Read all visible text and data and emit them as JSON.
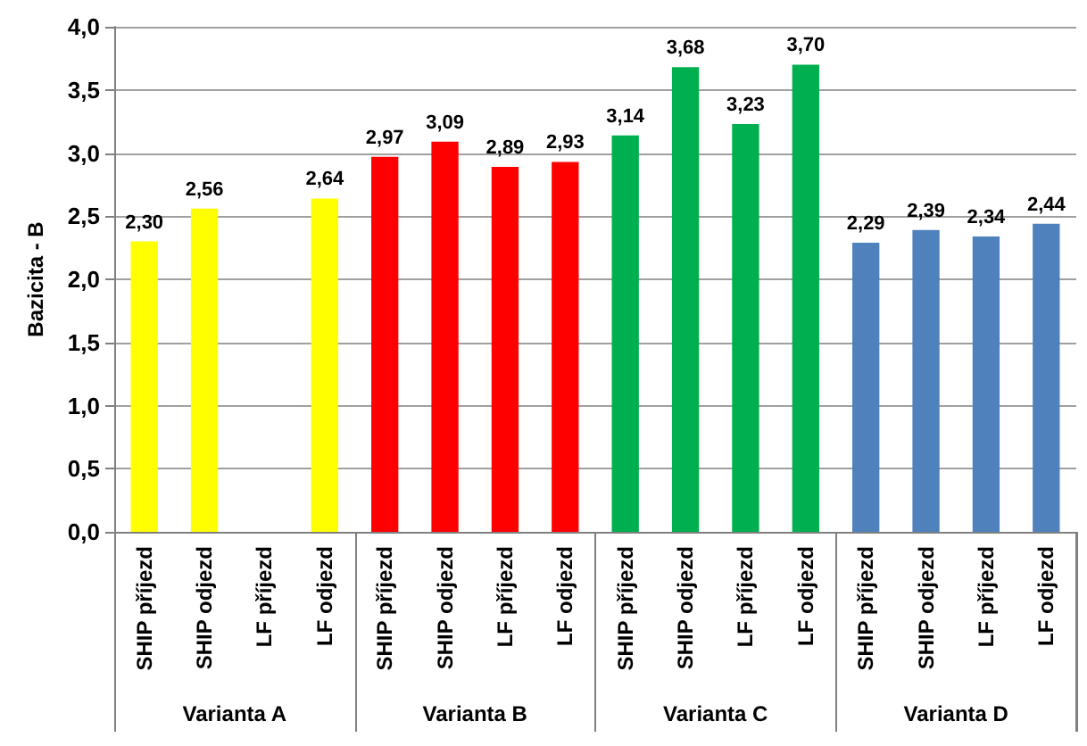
{
  "chart_data": {
    "type": "bar",
    "ylabel": "Bazicita - B",
    "categories": [
      "SHIP příjezd",
      "SHIP odjezd",
      "LF příjezd",
      "LF odjezd",
      "SHIP příjezd",
      "SHIP odjezd",
      "LF příjezd",
      "LF odjezd",
      "SHIP příjezd",
      "SHIP odjezd",
      "LF příjezd",
      "LF odjezd",
      "SHIP příjezd",
      "SHIP odjezd",
      "LF příjezd",
      "LF odjezd"
    ],
    "values": [
      2.3,
      2.56,
      null,
      2.64,
      2.97,
      3.09,
      2.89,
      2.93,
      3.14,
      3.68,
      3.23,
      3.7,
      2.29,
      2.39,
      2.34,
      2.44
    ],
    "value_labels": [
      "2,30",
      "2,56",
      null,
      "2,64",
      "2,97",
      "3,09",
      "2,89",
      "2,93",
      "3,14",
      "3,68",
      "3,23",
      "3,70",
      "2,29",
      "2,39",
      "2,34",
      "2,44"
    ],
    "colors": [
      "#ffff00",
      "#ffff00",
      "#ffff00",
      "#ffff00",
      "#ff0000",
      "#ff0000",
      "#ff0000",
      "#ff0000",
      "#00b050",
      "#00b050",
      "#00b050",
      "#00b050",
      "#4f81bd",
      "#4f81bd",
      "#4f81bd",
      "#4f81bd"
    ],
    "annotations": [
      "Varianta A",
      "Varianta B",
      "Varianta C",
      "Varianta D"
    ],
    "ylim": [
      0,
      4
    ],
    "yticks": [
      {
        "value": 0,
        "label": "0,0"
      },
      {
        "value": 0.5,
        "label": "0,5"
      },
      {
        "value": 1,
        "label": "1,0"
      },
      {
        "value": 1.5,
        "label": "1,5"
      },
      {
        "value": 2,
        "label": "2,0"
      },
      {
        "value": 2.5,
        "label": "2,5"
      },
      {
        "value": 3,
        "label": "3,0"
      },
      {
        "value": 3.5,
        "label": "3,5"
      },
      {
        "value": 4,
        "label": "4,0"
      }
    ],
    "grid": "y"
  }
}
